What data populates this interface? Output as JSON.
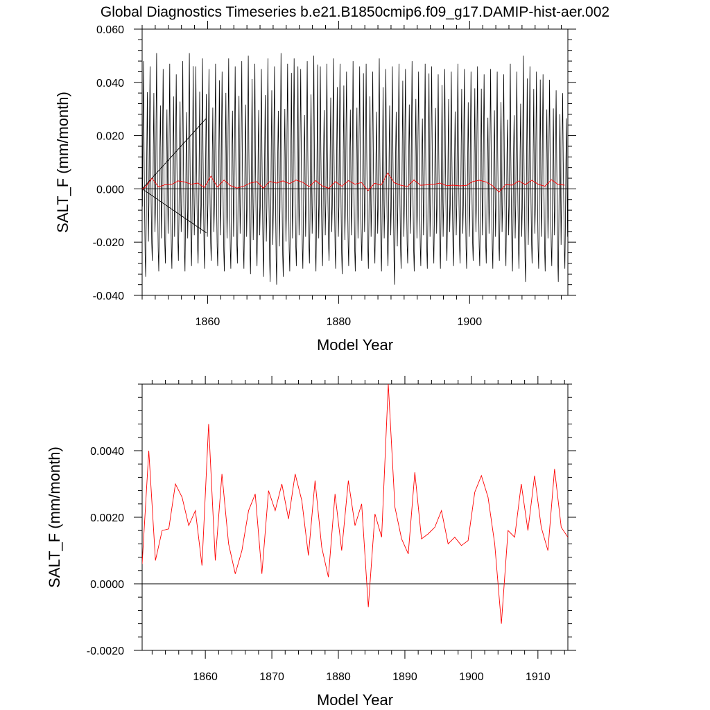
{
  "title": "Global Diagnostics Timeseries b.e21.B1850cmip6.f09_g17.DAMIP-hist-aer.002",
  "chart_data": [
    {
      "type": "line",
      "xlabel": "Model Year",
      "ylabel": "SALT_F (mm/month)",
      "xlim": [
        1850,
        1915
      ],
      "ylim": [
        -0.04,
        0.06
      ],
      "xticks": [
        1860,
        1880,
        1900
      ],
      "xtick_labels": [
        "1860",
        "1880",
        "1900"
      ],
      "yticks": [
        -0.04,
        -0.02,
        0.0,
        0.02,
        0.04,
        0.06
      ],
      "ytick_labels": [
        "-0.040",
        "-0.020",
        "0.000",
        "0.020",
        "0.040",
        "0.060"
      ],
      "zero_line": 0.0,
      "monthly_series": {
        "color": "#000000",
        "description_values": "monthly values oscillating between approx -0.035 and 0.051",
        "peaks": [
          0.048,
          0.046,
          0.051,
          0.045,
          0.047,
          0.043,
          0.048,
          0.051,
          0.046,
          0.049,
          0.045,
          0.047,
          0.044,
          0.049,
          0.046,
          0.048,
          0.05,
          0.047,
          0.045,
          0.049,
          0.046,
          0.051,
          0.047,
          0.049,
          0.045,
          0.048,
          0.05,
          0.046,
          0.047,
          0.049,
          0.047,
          0.044,
          0.048,
          0.046,
          0.047,
          0.044,
          0.049,
          0.045,
          0.046,
          0.047,
          0.045,
          0.048,
          0.044,
          0.047,
          0.046,
          0.043,
          0.045,
          0.044,
          0.047,
          0.045,
          0.044,
          0.046,
          0.043,
          0.045,
          0.044,
          0.043,
          0.047,
          0.044,
          0.05,
          0.046,
          0.044,
          0.043,
          0.041,
          0.037,
          0.036
        ],
        "troughs": [
          -0.033,
          -0.027,
          -0.031,
          -0.028,
          -0.03,
          -0.027,
          -0.031,
          -0.029,
          -0.028,
          -0.03,
          -0.027,
          -0.029,
          -0.031,
          -0.03,
          -0.028,
          -0.03,
          -0.032,
          -0.029,
          -0.033,
          -0.035,
          -0.036,
          -0.033,
          -0.031,
          -0.029,
          -0.03,
          -0.028,
          -0.031,
          -0.029,
          -0.027,
          -0.03,
          -0.032,
          -0.029,
          -0.031,
          -0.027,
          -0.03,
          -0.028,
          -0.031,
          -0.029,
          -0.036,
          -0.03,
          -0.028,
          -0.031,
          -0.029,
          -0.03,
          -0.028,
          -0.03,
          -0.027,
          -0.029,
          -0.028,
          -0.03,
          -0.027,
          -0.029,
          -0.028,
          -0.03,
          -0.027,
          -0.029,
          -0.031,
          -0.03,
          -0.035,
          -0.028,
          -0.03,
          -0.031,
          -0.029,
          -0.035,
          -0.03
        ]
      },
      "annual_series": {
        "color": "#ff0000",
        "x": [
          1850.5,
          1851.5,
          1852.5,
          1853.5,
          1854.5,
          1855.5,
          1856.5,
          1857.5,
          1858.5,
          1859.5,
          1860.5,
          1861.5,
          1862.5,
          1863.5,
          1864.5,
          1865.5,
          1866.5,
          1867.5,
          1868.5,
          1869.5,
          1870.5,
          1871.5,
          1872.5,
          1873.5,
          1874.5,
          1875.5,
          1876.5,
          1877.5,
          1878.5,
          1879.5,
          1880.5,
          1881.5,
          1882.5,
          1883.5,
          1884.5,
          1885.5,
          1886.5,
          1887.5,
          1888.5,
          1889.5,
          1890.5,
          1891.5,
          1892.5,
          1893.5,
          1894.5,
          1895.5,
          1896.5,
          1897.5,
          1898.5,
          1899.5,
          1900.5,
          1901.5,
          1902.5,
          1903.5,
          1904.5,
          1905.5,
          1906.5,
          1907.5,
          1908.5,
          1909.5,
          1910.5,
          1911.5,
          1912.5,
          1913.5,
          1914.5
        ],
        "values": [
          0.0006,
          0.004,
          0.0007,
          0.0016,
          0.00165,
          0.003,
          0.0026,
          0.00175,
          0.0022,
          0.00055,
          0.0048,
          0.0007,
          0.0033,
          0.0012,
          0.0003,
          0.001,
          0.0022,
          0.0027,
          0.0003,
          0.0028,
          0.0022,
          0.003,
          0.00195,
          0.0033,
          0.0025,
          0.00085,
          0.0031,
          0.0011,
          0.0002,
          0.0027,
          0.001,
          0.0031,
          0.00175,
          0.0024,
          -0.0007,
          0.0021,
          0.0014,
          0.006,
          0.0023,
          0.00135,
          0.0009,
          0.00335,
          0.00135,
          0.0015,
          0.0017,
          0.0022,
          0.0012,
          0.0014,
          0.00115,
          0.0013,
          0.00275,
          0.00325,
          0.0026,
          0.0012,
          -0.0012,
          0.0016,
          0.0014,
          0.003,
          0.0016,
          0.00325,
          0.0017,
          0.001,
          0.00345,
          0.0017,
          0.0014
        ]
      }
    },
    {
      "type": "line",
      "xlabel": "Model Year",
      "ylabel": "SALT_F (mm/month)",
      "xlim": [
        1850.5,
        1914.5
      ],
      "ylim": [
        -0.002,
        0.006
      ],
      "xticks": [
        1860,
        1870,
        1880,
        1890,
        1900,
        1910
      ],
      "xtick_labels": [
        "1860",
        "1870",
        "1880",
        "1890",
        "1900",
        "1910"
      ],
      "yticks": [
        -0.002,
        0.0,
        0.002,
        0.004
      ],
      "ytick_labels": [
        "-0.0020",
        "0.0000",
        "0.0020",
        "0.0040"
      ],
      "zero_line": 0.0,
      "annual_series": {
        "color": "#ff0000",
        "ref": "same as panel 1 annual_series"
      }
    }
  ]
}
